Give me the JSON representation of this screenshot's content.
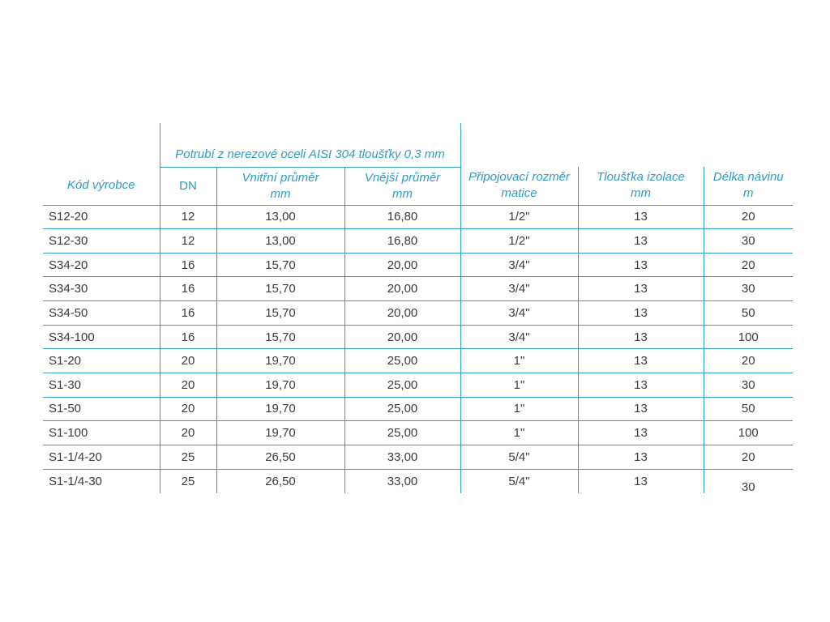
{
  "colors": {
    "accent": "#2f9cc8",
    "body_text": "#3b3b3b"
  },
  "table": {
    "group_header": "Potrubí z nerezové oceli AISI 304 tloušťky 0,3 mm",
    "columns": [
      {
        "line1": "Kód výrobce",
        "line2": ""
      },
      {
        "line1": "DN",
        "line2": ""
      },
      {
        "line1": "Vnitřní průměr",
        "line2": "mm"
      },
      {
        "line1": "Vnější průměr",
        "line2": "mm"
      },
      {
        "line1": "Připojovací rozměr",
        "line2": "matice"
      },
      {
        "line1": "Tloušťka izolace",
        "line2": "mm"
      },
      {
        "line1": "Délka návinu",
        "line2": "m"
      }
    ],
    "rows": [
      [
        "S12-20",
        "12",
        "13,00",
        "16,80",
        "1/2\"",
        "13",
        "20"
      ],
      [
        "S12-30",
        "12",
        "13,00",
        "16,80",
        "1/2\"",
        "13",
        "30"
      ],
      [
        "S34-20",
        "16",
        "15,70",
        "20,00",
        "3/4\"",
        "13",
        "20"
      ],
      [
        "S34-30",
        "16",
        "15,70",
        "20,00",
        "3/4\"",
        "13",
        "30"
      ],
      [
        "S34-50",
        "16",
        "15,70",
        "20,00",
        "3/4\"",
        "13",
        "50"
      ],
      [
        "S34-100",
        "16",
        "15,70",
        "20,00",
        "3/4\"",
        "13",
        "100"
      ],
      [
        "S1-20",
        "20",
        "19,70",
        "25,00",
        "1\"",
        "13",
        "20"
      ],
      [
        "S1-30",
        "20",
        "19,70",
        "25,00",
        "1\"",
        "13",
        "30"
      ],
      [
        "S1-50",
        "20",
        "19,70",
        "25,00",
        "1\"",
        "13",
        "50"
      ],
      [
        "S1-100",
        "20",
        "19,70",
        "25,00",
        "1\"",
        "13",
        "100"
      ],
      [
        "S1-1/4-20",
        "25",
        "26,50",
        "33,00",
        "5/4\"",
        "13",
        "20"
      ],
      [
        "S1-1/4-30",
        "25",
        "26,50",
        "33,00",
        "5/4\"",
        "13",
        "30"
      ]
    ]
  }
}
